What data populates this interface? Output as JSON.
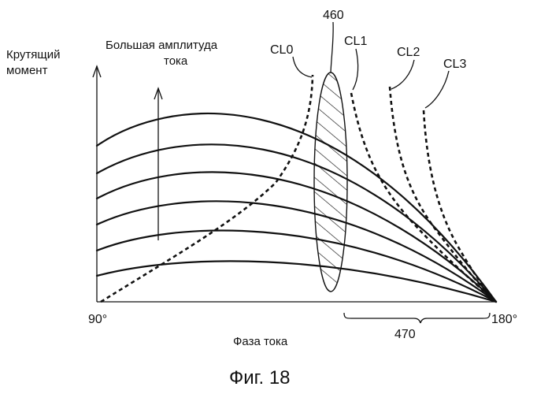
{
  "labels": {
    "y_axis_line1": "Крутящий",
    "y_axis_line2": "момент",
    "amplitude_line1": "Большая амплитуда",
    "amplitude_line2": "тока",
    "cl0": "CL0",
    "cl1": "CL1",
    "cl2": "CL2",
    "cl3": "CL3",
    "ref_460": "460",
    "ref_470": "470",
    "x_start": "90°",
    "x_end": "180°",
    "x_axis": "Фаза тока",
    "figure_caption": "Фиг. 18"
  }
}
